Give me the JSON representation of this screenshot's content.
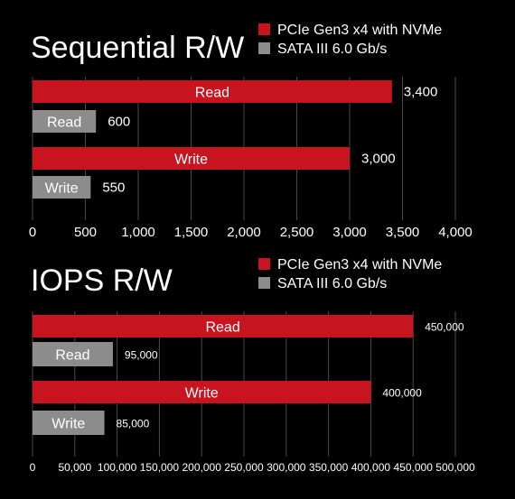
{
  "chart_data": [
    {
      "type": "bar",
      "orientation": "horizontal",
      "title": "Sequential R/W",
      "xlim": [
        0,
        4000
      ],
      "xticks": [
        0,
        500,
        1000,
        1500,
        2000,
        2500,
        3000,
        3500,
        4000
      ],
      "tick_labels": [
        "0",
        "500",
        "1,000",
        "1,500",
        "2,000",
        "2,500",
        "3,000",
        "3,500",
        "4,000"
      ],
      "grid": "vertical",
      "legend": "top-right",
      "legend_entries": [
        {
          "name": "PCIe Gen3 x4 with NVMe",
          "color": "#c8141e"
        },
        {
          "name": "SATA III 6.0 Gb/s",
          "color": "#8c8c8c"
        }
      ],
      "bars": [
        {
          "label": "Read",
          "value": 3400,
          "value_label": "3,400",
          "series": "PCIe Gen3 x4 with NVMe",
          "color": "#c8141e"
        },
        {
          "label": "Read",
          "value": 600,
          "value_label": "600",
          "series": "SATA III 6.0 Gb/s",
          "color": "#8c8c8c"
        },
        {
          "label": "Write",
          "value": 3000,
          "value_label": "3,000",
          "series": "PCIe Gen3 x4 with NVMe",
          "color": "#c8141e"
        },
        {
          "label": "Write",
          "value": 550,
          "value_label": "550",
          "series": "SATA III 6.0 Gb/s",
          "color": "#8c8c8c"
        }
      ]
    },
    {
      "type": "bar",
      "orientation": "horizontal",
      "title": "IOPS R/W",
      "xlim": [
        0,
        500000
      ],
      "xticks": [
        0,
        50000,
        100000,
        150000,
        200000,
        250000,
        300000,
        350000,
        400000,
        450000,
        500000
      ],
      "tick_labels": [
        "0",
        "50,000",
        "100,000",
        "150,000",
        "200,000",
        "250,000",
        "300,000",
        "350,000",
        "400,000",
        "450,000",
        "500,000"
      ],
      "grid": "vertical",
      "legend": "top-right",
      "legend_entries": [
        {
          "name": "PCIe Gen3 x4 with NVMe",
          "color": "#c8141e"
        },
        {
          "name": "SATA III 6.0 Gb/s",
          "color": "#8c8c8c"
        }
      ],
      "bars": [
        {
          "label": "Read",
          "value": 450000,
          "value_label": "450,000",
          "series": "PCIe Gen3 x4 with NVMe",
          "color": "#c8141e"
        },
        {
          "label": "Read",
          "value": 95000,
          "value_label": "95,000",
          "series": "SATA III 6.0 Gb/s",
          "color": "#8c8c8c"
        },
        {
          "label": "Write",
          "value": 400000,
          "value_label": "400,000",
          "series": "PCIe Gen3 x4 with NVMe",
          "color": "#c8141e"
        },
        {
          "label": "Write",
          "value": 85000,
          "value_label": "85,000",
          "series": "SATA III 6.0 Gb/s",
          "color": "#8c8c8c"
        }
      ]
    }
  ],
  "colors": {
    "background": "#000000",
    "gridline": "#4a4a4a",
    "text": "#ffffff"
  }
}
